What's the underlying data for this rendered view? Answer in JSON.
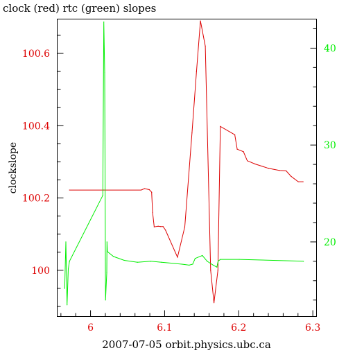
{
  "chart_data": {
    "type": "line",
    "title": "clock (red) rtc (green) slopes",
    "xlabel": "2007-07-05 orbit.physics.ubc.ca",
    "ylabel": "clockslope",
    "xlim": [
      5.955,
      6.305
    ],
    "ylim_left": [
      99.872,
      100.695
    ],
    "ylim_right": [
      12.3,
      43.0
    ],
    "x_ticks": [
      "6",
      "6.1",
      "6.2",
      "6.3"
    ],
    "y_ticks_left": [
      "100",
      "100.2",
      "100.4",
      "100.6"
    ],
    "y_ticks_right": [
      "20",
      "30",
      "40"
    ],
    "colors": {
      "left": "#dd0000",
      "right": "#00ee00",
      "axes": "#000000"
    },
    "series": [
      {
        "name": "clock",
        "axis": "left",
        "color": "#dd0000",
        "x": [
          5.9715,
          6.018,
          6.0682,
          6.0728,
          6.0793,
          6.0825,
          6.0838,
          6.0859,
          6.0913,
          6.0946,
          6.0979,
          6.1012,
          6.1174,
          6.1272,
          6.1369,
          6.143,
          6.1483,
          6.1549,
          6.1621,
          6.1666,
          6.1719,
          6.1752,
          6.1947,
          6.1979,
          6.2064,
          6.2115,
          6.222,
          6.2402,
          6.2552,
          6.264,
          6.2706,
          6.2804,
          6.2869
        ],
        "y": [
          100.222,
          100.222,
          100.222,
          100.226,
          100.223,
          100.216,
          100.16,
          100.12,
          100.122,
          100.121,
          100.121,
          100.111,
          100.036,
          100.12,
          100.38,
          100.55,
          100.69,
          100.62,
          100.0,
          99.91,
          100.0,
          100.398,
          100.375,
          100.335,
          100.328,
          100.303,
          100.294,
          100.282,
          100.276,
          100.275,
          100.26,
          100.245,
          100.245
        ]
      },
      {
        "name": "rtc",
        "axis": "right",
        "color": "#00ee00",
        "x": [
          5.9651,
          5.9667,
          5.9683,
          5.97,
          5.9716,
          6.0166,
          6.0179,
          6.0191,
          6.0202,
          6.0219,
          6.0222,
          6.0228,
          6.0309,
          6.0455,
          6.0633,
          6.0812,
          6.0958,
          6.1234,
          6.1331,
          6.1379,
          6.1412,
          6.1509,
          6.1574,
          6.1656,
          6.1705,
          6.1721,
          6.1753,
          6.2007,
          6.2874
        ],
        "y": [
          15.2,
          20.0,
          13.5,
          17.2,
          18.0,
          24.8,
          42.7,
          37.5,
          14.0,
          16.8,
          20.0,
          19.0,
          18.5,
          18.1,
          17.9,
          18.0,
          17.9,
          17.7,
          17.6,
          17.7,
          18.3,
          18.6,
          18.0,
          17.6,
          17.4,
          18.0,
          18.2,
          18.2,
          18.0
        ]
      }
    ]
  }
}
